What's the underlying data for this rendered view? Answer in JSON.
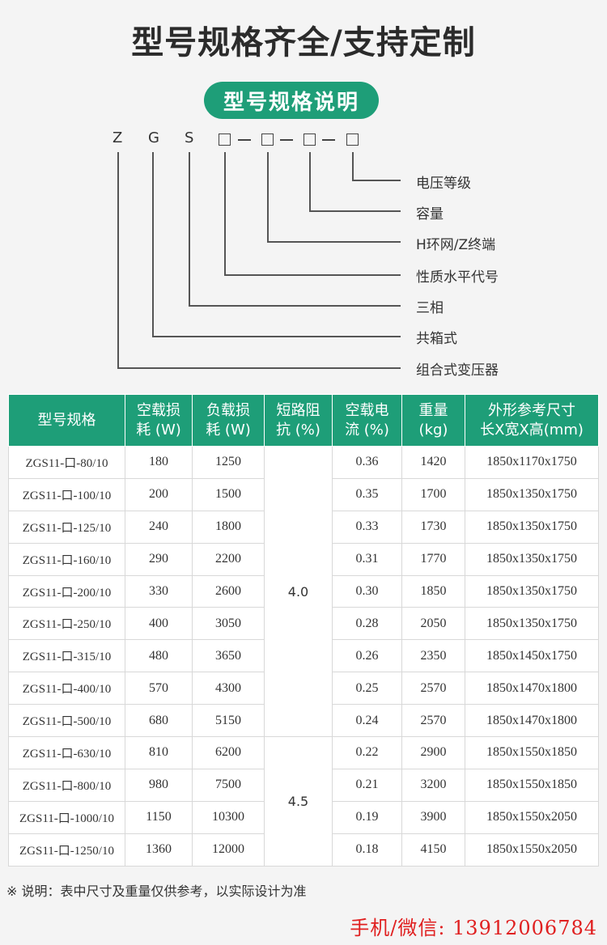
{
  "header": {
    "title": "型号规格齐全/支持定制",
    "subtitle": "型号规格说明"
  },
  "diagram": {
    "code_letters": [
      "Z",
      "G",
      "S"
    ],
    "code_box_glyph": "□",
    "code_dash_glyph": "—",
    "labels": [
      "电压等级",
      "容量",
      "H环网/Z终端",
      "性质水平代号",
      "三相",
      "共箱式",
      "组合式变压器"
    ]
  },
  "table": {
    "headers": [
      [
        "型号规格"
      ],
      [
        "空载损",
        "耗 (W)"
      ],
      [
        "负载损",
        "耗 (W)"
      ],
      [
        "短路阻",
        "抗 (%)"
      ],
      [
        "空载电",
        "流 (%)"
      ],
      [
        "重量",
        "(kg)"
      ],
      [
        "外形参考尺寸",
        "长X宽X高(mm)"
      ]
    ],
    "impedance_groups": [
      {
        "value": "4.0",
        "rows": 9
      },
      {
        "value": "4.5",
        "rows": 4
      }
    ],
    "rows": [
      {
        "model": "ZGS11-口-80/10",
        "no_load_loss": "180",
        "load_loss": "1250",
        "no_load_current": "0.36",
        "weight": "1420",
        "dimensions": "1850x1170x1750"
      },
      {
        "model": "ZGS11-口-100/10",
        "no_load_loss": "200",
        "load_loss": "1500",
        "no_load_current": "0.35",
        "weight": "1700",
        "dimensions": "1850x1350x1750"
      },
      {
        "model": "ZGS11-口-125/10",
        "no_load_loss": "240",
        "load_loss": "1800",
        "no_load_current": "0.33",
        "weight": "1730",
        "dimensions": "1850x1350x1750"
      },
      {
        "model": "ZGS11-口-160/10",
        "no_load_loss": "290",
        "load_loss": "2200",
        "no_load_current": "0.31",
        "weight": "1770",
        "dimensions": "1850x1350x1750"
      },
      {
        "model": "ZGS11-口-200/10",
        "no_load_loss": "330",
        "load_loss": "2600",
        "no_load_current": "0.30",
        "weight": "1850",
        "dimensions": "1850x1350x1750"
      },
      {
        "model": "ZGS11-口-250/10",
        "no_load_loss": "400",
        "load_loss": "3050",
        "no_load_current": "0.28",
        "weight": "2050",
        "dimensions": "1850x1350x1750"
      },
      {
        "model": "ZGS11-口-315/10",
        "no_load_loss": "480",
        "load_loss": "3650",
        "no_load_current": "0.26",
        "weight": "2350",
        "dimensions": "1850x1450x1750"
      },
      {
        "model": "ZGS11-口-400/10",
        "no_load_loss": "570",
        "load_loss": "4300",
        "no_load_current": "0.25",
        "weight": "2570",
        "dimensions": "1850x1470x1800"
      },
      {
        "model": "ZGS11-口-500/10",
        "no_load_loss": "680",
        "load_loss": "5150",
        "no_load_current": "0.24",
        "weight": "2570",
        "dimensions": "1850x1470x1800"
      },
      {
        "model": "ZGS11-口-630/10",
        "no_load_loss": "810",
        "load_loss": "6200",
        "no_load_current": "0.22",
        "weight": "2900",
        "dimensions": "1850x1550x1850"
      },
      {
        "model": "ZGS11-口-800/10",
        "no_load_loss": "980",
        "load_loss": "7500",
        "no_load_current": "0.21",
        "weight": "3200",
        "dimensions": "1850x1550x1850"
      },
      {
        "model": "ZGS11-口-1000/10",
        "no_load_loss": "1150",
        "load_loss": "10300",
        "no_load_current": "0.19",
        "weight": "3900",
        "dimensions": "1850x1550x2050"
      },
      {
        "model": "ZGS11-口-1250/10",
        "no_load_loss": "1360",
        "load_loss": "12000",
        "no_load_current": "0.18",
        "weight": "4150",
        "dimensions": "1850x1550x2050"
      }
    ]
  },
  "footer": {
    "note": "※ 说明：表中尺寸及重量仅供参考，以实际设计为准",
    "contact": "手机/微信: 13912006784"
  },
  "colors": {
    "accent_green": "#1e9e78",
    "contact_red": "#e02020"
  }
}
